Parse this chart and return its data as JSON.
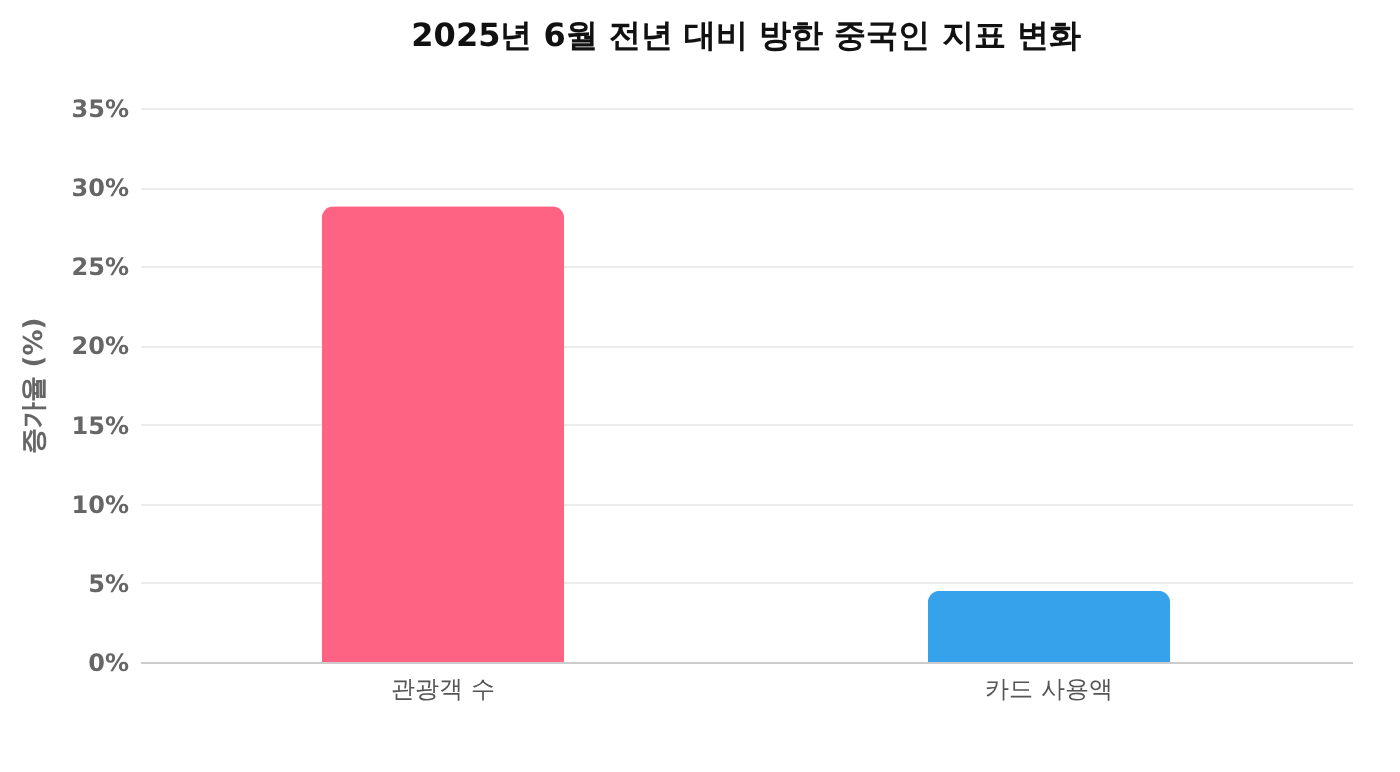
{
  "chart_data": {
    "type": "bar",
    "title": "2025년 6월 전년 대비 방한 중국인 지표 변화",
    "ylabel": "증가율 (%)",
    "categories": [
      "관광객 수",
      "카드 사용액"
    ],
    "values": [
      28.8,
      4.5
    ],
    "colors": [
      "#ff6384",
      "#36a2eb"
    ],
    "ylim": [
      0,
      35
    ],
    "yticks": [
      {
        "value": 0,
        "label": "0%"
      },
      {
        "value": 5,
        "label": "5%"
      },
      {
        "value": 10,
        "label": "10%"
      },
      {
        "value": 15,
        "label": "15%"
      },
      {
        "value": 20,
        "label": "20%"
      },
      {
        "value": 25,
        "label": "25%"
      },
      {
        "value": 30,
        "label": "30%"
      },
      {
        "value": 35,
        "label": "35%"
      }
    ],
    "grid": "y"
  }
}
